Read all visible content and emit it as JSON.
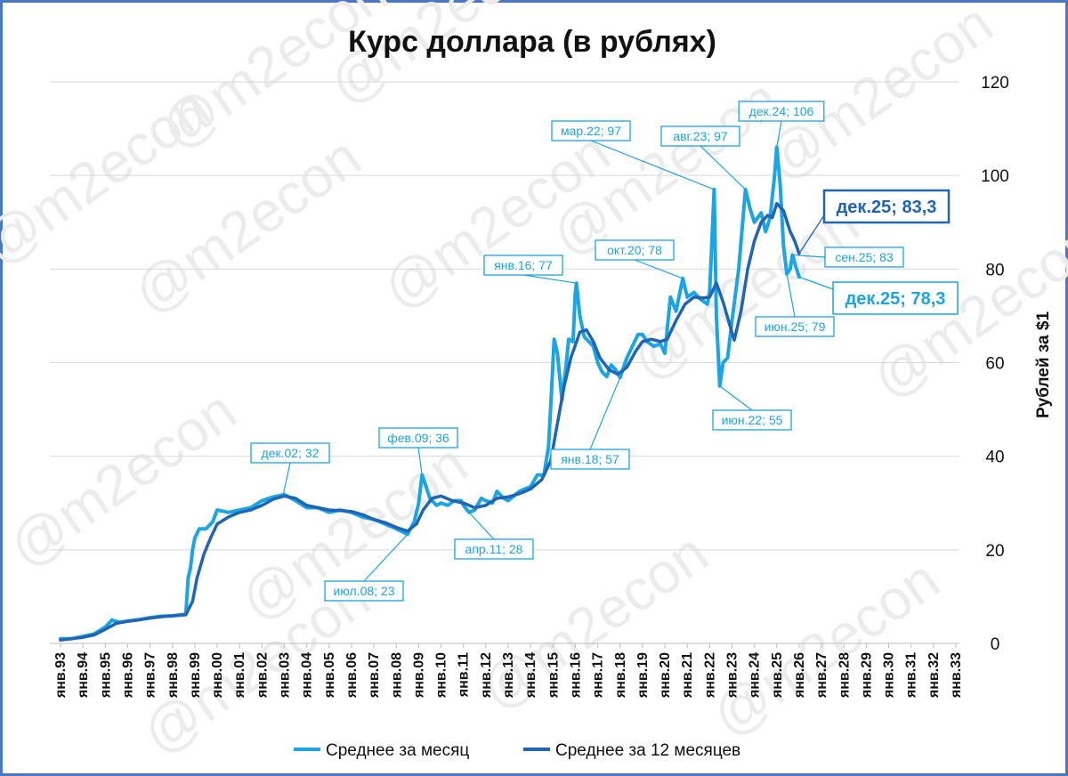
{
  "chart_data": {
    "type": "line",
    "title": "Курс доллара (в рублях)",
    "ylabel": "Рублей за $1",
    "ylim": [
      0,
      120
    ],
    "yticks": [
      "0",
      "20",
      "40",
      "60",
      "80",
      "100",
      "120"
    ],
    "x_tick_labels": [
      "янв.93",
      "янв.94",
      "янв.95",
      "янв.96",
      "янв.97",
      "янв.98",
      "янв.99",
      "янв.00",
      "янв.01",
      "янв.02",
      "янв.03",
      "янв.04",
      "янв.05",
      "янв.06",
      "янв.07",
      "янв.08",
      "янв.09",
      "янв.10",
      "янв.11",
      "янв.12",
      "янв.13",
      "янв.14",
      "янв.15",
      "янв.16",
      "янв.17",
      "янв.18",
      "янв.19",
      "янв.20",
      "янв.21",
      "янв.22",
      "янв.23",
      "янв.24",
      "янв.25",
      "янв.26",
      "янв.27",
      "янв.28",
      "янв.29",
      "янв.30",
      "янв.31",
      "янв.32",
      "янв.33"
    ],
    "grid": true,
    "legend_position": "bottom",
    "watermark": "@m2econ",
    "colors": {
      "monthly": "#1ba4e6",
      "annual": "#1f64b5",
      "grid": "#d9d9d9"
    },
    "series": [
      {
        "name": "Среднее за месяц",
        "points": [
          [
            1993.0,
            1.0
          ],
          [
            1993.5,
            1.0
          ],
          [
            1994.0,
            1.5
          ],
          [
            1994.5,
            2.0
          ],
          [
            1995.0,
            3.5
          ],
          [
            1995.3,
            5.0
          ],
          [
            1995.6,
            4.5
          ],
          [
            1996.0,
            4.8
          ],
          [
            1996.5,
            5.1
          ],
          [
            1997.0,
            5.5
          ],
          [
            1997.5,
            5.8
          ],
          [
            1998.0,
            5.9
          ],
          [
            1998.4,
            6.1
          ],
          [
            1998.6,
            6.3
          ],
          [
            1998.7,
            14.0
          ],
          [
            1998.8,
            16.0
          ],
          [
            1998.9,
            20.0
          ],
          [
            1999.0,
            22.5
          ],
          [
            1999.2,
            24.5
          ],
          [
            1999.5,
            24.5
          ],
          [
            1999.8,
            26.0
          ],
          [
            2000.0,
            28.5
          ],
          [
            2000.5,
            28.0
          ],
          [
            2001.0,
            28.5
          ],
          [
            2001.5,
            29.0
          ],
          [
            2002.0,
            30.5
          ],
          [
            2002.5,
            31.3
          ],
          [
            2003.0,
            31.8
          ],
          [
            2003.5,
            30.5
          ],
          [
            2004.0,
            29.0
          ],
          [
            2004.5,
            29.0
          ],
          [
            2005.0,
            28.0
          ],
          [
            2005.5,
            28.5
          ],
          [
            2006.0,
            28.0
          ],
          [
            2006.5,
            27.0
          ],
          [
            2007.0,
            26.5
          ],
          [
            2007.5,
            25.5
          ],
          [
            2008.0,
            24.5
          ],
          [
            2008.5,
            23.3
          ],
          [
            2008.8,
            26.0
          ],
          [
            2009.0,
            30.0
          ],
          [
            2009.15,
            36.0
          ],
          [
            2009.3,
            34.0
          ],
          [
            2009.5,
            31.0
          ],
          [
            2009.8,
            29.5
          ],
          [
            2010.0,
            30.0
          ],
          [
            2010.3,
            29.5
          ],
          [
            2010.6,
            30.5
          ],
          [
            2010.9,
            30.5
          ],
          [
            2011.0,
            29.5
          ],
          [
            2011.25,
            28.0
          ],
          [
            2011.5,
            28.5
          ],
          [
            2011.8,
            31.0
          ],
          [
            2012.0,
            30.5
          ],
          [
            2012.3,
            30.0
          ],
          [
            2012.5,
            32.5
          ],
          [
            2012.8,
            31.0
          ],
          [
            2013.0,
            30.5
          ],
          [
            2013.5,
            32.5
          ],
          [
            2014.0,
            33.5
          ],
          [
            2014.3,
            36.0
          ],
          [
            2014.6,
            36.0
          ],
          [
            2014.8,
            42.0
          ],
          [
            2014.95,
            55.0
          ],
          [
            2015.05,
            65.0
          ],
          [
            2015.2,
            62.0
          ],
          [
            2015.4,
            52.0
          ],
          [
            2015.6,
            60.0
          ],
          [
            2015.7,
            65.0
          ],
          [
            2015.9,
            64.5
          ],
          [
            2016.0,
            75.0
          ],
          [
            2016.05,
            77.0
          ],
          [
            2016.2,
            70.0
          ],
          [
            2016.4,
            65.5
          ],
          [
            2016.6,
            64.5
          ],
          [
            2016.8,
            63.5
          ],
          [
            2017.0,
            60.0
          ],
          [
            2017.2,
            58.0
          ],
          [
            2017.4,
            57.0
          ],
          [
            2017.6,
            59.5
          ],
          [
            2017.8,
            58.5
          ],
          [
            2018.0,
            56.8
          ],
          [
            2018.3,
            61.0
          ],
          [
            2018.5,
            63.0
          ],
          [
            2018.8,
            66.0
          ],
          [
            2019.0,
            66.0
          ],
          [
            2019.2,
            64.5
          ],
          [
            2019.5,
            63.5
          ],
          [
            2019.8,
            64.0
          ],
          [
            2020.0,
            62.0
          ],
          [
            2020.25,
            74.0
          ],
          [
            2020.5,
            71.0
          ],
          [
            2020.8,
            78.0
          ],
          [
            2021.0,
            74.0
          ],
          [
            2021.3,
            75.0
          ],
          [
            2021.6,
            73.5
          ],
          [
            2021.9,
            72.5
          ],
          [
            2022.0,
            75.0
          ],
          [
            2022.1,
            86.0
          ],
          [
            2022.2,
            97.0
          ],
          [
            2022.3,
            70.0
          ],
          [
            2022.45,
            55.0
          ],
          [
            2022.6,
            60.0
          ],
          [
            2022.8,
            61.0
          ],
          [
            2023.0,
            69.0
          ],
          [
            2023.3,
            80.0
          ],
          [
            2023.6,
            97.0
          ],
          [
            2023.8,
            93.0
          ],
          [
            2024.0,
            90.0
          ],
          [
            2024.3,
            92.0
          ],
          [
            2024.5,
            88.0
          ],
          [
            2024.7,
            91.0
          ],
          [
            2024.9,
            100.0
          ],
          [
            2025.0,
            106.0
          ],
          [
            2025.15,
            98.0
          ],
          [
            2025.3,
            85.0
          ],
          [
            2025.45,
            79.0
          ],
          [
            2025.6,
            80.0
          ],
          [
            2025.7,
            83.0
          ],
          [
            2025.85,
            80.5
          ],
          [
            2026.0,
            78.3
          ]
        ]
      },
      {
        "name": "Среднее за 12 месяцев",
        "points": [
          [
            1993.0,
            0.7
          ],
          [
            1993.5,
            1.0
          ],
          [
            1994.0,
            1.3
          ],
          [
            1994.5,
            1.8
          ],
          [
            1995.0,
            3.0
          ],
          [
            1995.5,
            4.3
          ],
          [
            1996.0,
            4.7
          ],
          [
            1996.5,
            5.0
          ],
          [
            1997.0,
            5.4
          ],
          [
            1997.5,
            5.7
          ],
          [
            1998.0,
            5.9
          ],
          [
            1998.6,
            6.1
          ],
          [
            1998.9,
            9.0
          ],
          [
            1999.1,
            14.0
          ],
          [
            1999.4,
            19.0
          ],
          [
            1999.7,
            22.5
          ],
          [
            2000.0,
            25.5
          ],
          [
            2000.5,
            27.0
          ],
          [
            2001.0,
            28.0
          ],
          [
            2001.5,
            28.5
          ],
          [
            2002.0,
            29.5
          ],
          [
            2002.5,
            30.8
          ],
          [
            2003.0,
            31.5
          ],
          [
            2003.5,
            31.0
          ],
          [
            2004.0,
            29.5
          ],
          [
            2004.5,
            29.0
          ],
          [
            2005.0,
            28.5
          ],
          [
            2005.5,
            28.4
          ],
          [
            2006.0,
            28.2
          ],
          [
            2006.5,
            27.5
          ],
          [
            2007.0,
            26.5
          ],
          [
            2007.5,
            25.8
          ],
          [
            2008.0,
            24.8
          ],
          [
            2008.5,
            24.0
          ],
          [
            2008.9,
            25.5
          ],
          [
            2009.2,
            28.5
          ],
          [
            2009.6,
            31.0
          ],
          [
            2010.0,
            31.5
          ],
          [
            2010.5,
            30.5
          ],
          [
            2011.0,
            30.0
          ],
          [
            2011.5,
            29.0
          ],
          [
            2012.0,
            29.5
          ],
          [
            2012.5,
            31.0
          ],
          [
            2013.0,
            31.3
          ],
          [
            2013.5,
            32.0
          ],
          [
            2014.0,
            33.0
          ],
          [
            2014.5,
            35.0
          ],
          [
            2014.9,
            39.0
          ],
          [
            2015.2,
            47.0
          ],
          [
            2015.5,
            55.0
          ],
          [
            2015.8,
            61.0
          ],
          [
            2016.2,
            66.5
          ],
          [
            2016.5,
            67.0
          ],
          [
            2016.8,
            64.5
          ],
          [
            2017.1,
            61.0
          ],
          [
            2017.5,
            58.5
          ],
          [
            2017.9,
            57.5
          ],
          [
            2018.3,
            59.0
          ],
          [
            2018.7,
            62.5
          ],
          [
            2019.0,
            64.5
          ],
          [
            2019.4,
            65.0
          ],
          [
            2019.8,
            64.5
          ],
          [
            2020.1,
            65.0
          ],
          [
            2020.5,
            69.0
          ],
          [
            2020.9,
            72.5
          ],
          [
            2021.3,
            74.0
          ],
          [
            2021.7,
            73.8
          ],
          [
            2022.0,
            74.0
          ],
          [
            2022.3,
            77.0
          ],
          [
            2022.6,
            73.0
          ],
          [
            2022.9,
            68.0
          ],
          [
            2023.1,
            64.8
          ],
          [
            2023.4,
            71.0
          ],
          [
            2023.7,
            80.0
          ],
          [
            2024.0,
            86.0
          ],
          [
            2024.3,
            90.0
          ],
          [
            2024.6,
            91.5
          ],
          [
            2024.8,
            91.0
          ],
          [
            2025.0,
            94.0
          ],
          [
            2025.3,
            92.5
          ],
          [
            2025.6,
            88.0
          ],
          [
            2025.8,
            86.0
          ],
          [
            2026.0,
            83.3
          ]
        ]
      }
    ],
    "annotations": [
      {
        "label": "дек.02; 32",
        "x": 2002.95,
        "y": 31.8,
        "anchor": "top"
      },
      {
        "label": "июл.08; 23",
        "x": 2008.5,
        "y": 23.3,
        "anchor": "bottom"
      },
      {
        "label": "фев.09; 36",
        "x": 2009.15,
        "y": 36.0,
        "anchor": "top"
      },
      {
        "label": "апр.11; 28",
        "x": 2011.25,
        "y": 28.0,
        "anchor": "bottom"
      },
      {
        "label": "янв.16; 77",
        "x": 2016.05,
        "y": 77.0,
        "anchor": "top"
      },
      {
        "label": "янв.18; 57",
        "x": 2018.0,
        "y": 56.8,
        "anchor": "bottom"
      },
      {
        "label": "окт.20; 78",
        "x": 2020.8,
        "y": 78.0,
        "anchor": "top"
      },
      {
        "label": "мар.22; 97",
        "x": 2022.2,
        "y": 97.0,
        "anchor": "top"
      },
      {
        "label": "июн.22; 55",
        "x": 2022.45,
        "y": 55.0,
        "anchor": "bottom"
      },
      {
        "label": "авг.23; 97",
        "x": 2023.6,
        "y": 97.0,
        "anchor": "top"
      },
      {
        "label": "дек.24; 106",
        "x": 2025.0,
        "y": 106.0,
        "anchor": "top"
      },
      {
        "label": "сен.25; 83",
        "x": 2025.7,
        "y": 83.0,
        "anchor": "right"
      },
      {
        "label": "июн.25; 79",
        "x": 2025.45,
        "y": 79.0,
        "anchor": "bottom"
      }
    ],
    "highlight_labels": [
      {
        "label": "дек.25; 83,3",
        "series": "Среднее за 12 месяцев",
        "x": 2026.0,
        "y": 83.3
      },
      {
        "label": "дек.25; 78,3",
        "series": "Среднее за месяц",
        "x": 2026.0,
        "y": 78.3
      }
    ]
  }
}
